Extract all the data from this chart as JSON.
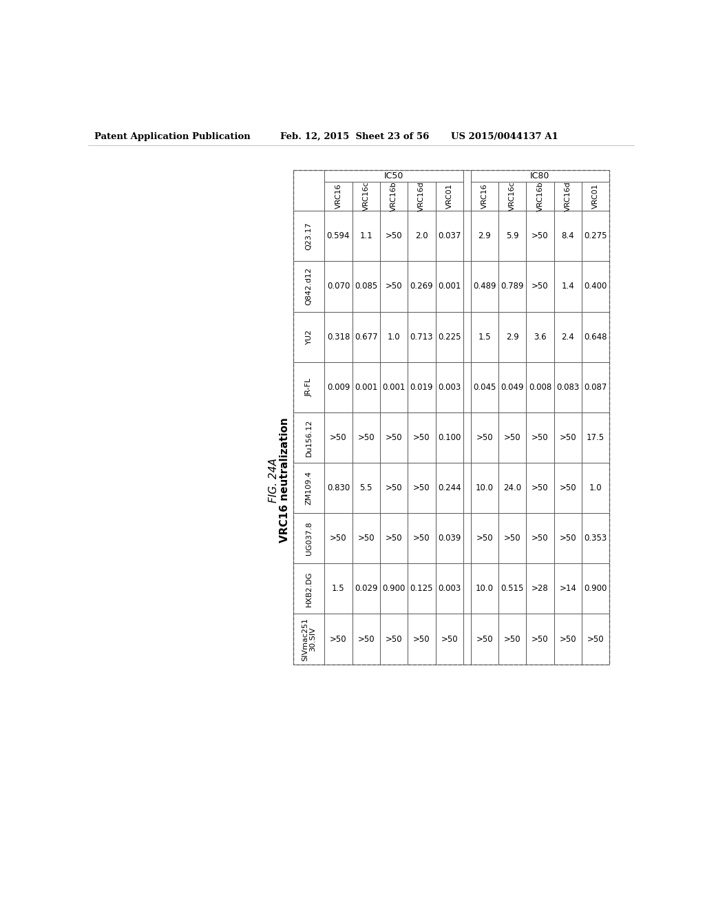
{
  "fig_label": "FIG. 24A",
  "fig_title": "VRC16 neutralization",
  "patent_left": "Patent Application Publication",
  "patent_mid": "Feb. 12, 2015  Sheet 23 of 56",
  "patent_right": "US 2015/0044137 A1",
  "ic50_label": "IC50",
  "ic80_label": "IC80",
  "col_headers": [
    "VRC16",
    "VRC16c",
    "VRC16b",
    "VRC16d",
    "VRC01",
    "VRC16",
    "VRC16c",
    "VRC16b",
    "VRC16d",
    "VRC01"
  ],
  "row_labels": [
    "",
    "Q23.17",
    "Q842.d12",
    "YU2",
    "JR-FL",
    "Du156.12",
    "ZM109.4",
    "UG037.8",
    "HXB2.DG",
    "SIVmac251\n30.SIV"
  ],
  "data": [
    [
      "0.594",
      "1.1",
      ">50",
      "2.0",
      "0.037",
      "2.9",
      "5.9",
      ">50",
      "8.4",
      "0.275"
    ],
    [
      "0.070",
      "0.085",
      ">50",
      "0.269",
      "0.001",
      "0.489",
      "0.789",
      ">50",
      "1.4",
      "0.400"
    ],
    [
      "0.318",
      "0.677",
      "1.0",
      "0.713",
      "0.225",
      "1.5",
      "2.9",
      "3.6",
      "2.4",
      "0.648"
    ],
    [
      "0.009",
      "0.001",
      "0.001",
      "0.019",
      "0.003",
      "0.045",
      "0.049",
      "0.008",
      "0.083",
      "0.087"
    ],
    [
      ">50",
      ">50",
      ">50",
      ">50",
      "0.100",
      ">50",
      ">50",
      ">50",
      ">50",
      "17.5"
    ],
    [
      "0.830",
      "5.5",
      ">50",
      ">50",
      "0.244",
      "10.0",
      "24.0",
      ">50",
      ">50",
      "1.0"
    ],
    [
      ">50",
      ">50",
      ">50",
      ">50",
      "0.039",
      ">50",
      ">50",
      ">50",
      ">50",
      "0.353"
    ],
    [
      "1.5",
      "0.029",
      "0.900",
      "0.125",
      "0.003",
      "10.0",
      "0.515",
      ">28",
      ">14",
      "0.900"
    ],
    [
      ">50",
      ">50",
      ">50",
      ">50",
      ">50",
      ">50",
      ">50",
      ">50",
      ">50",
      ">50"
    ]
  ],
  "bg_color": "#ffffff",
  "text_color": "#000000",
  "border_color": "#888888"
}
